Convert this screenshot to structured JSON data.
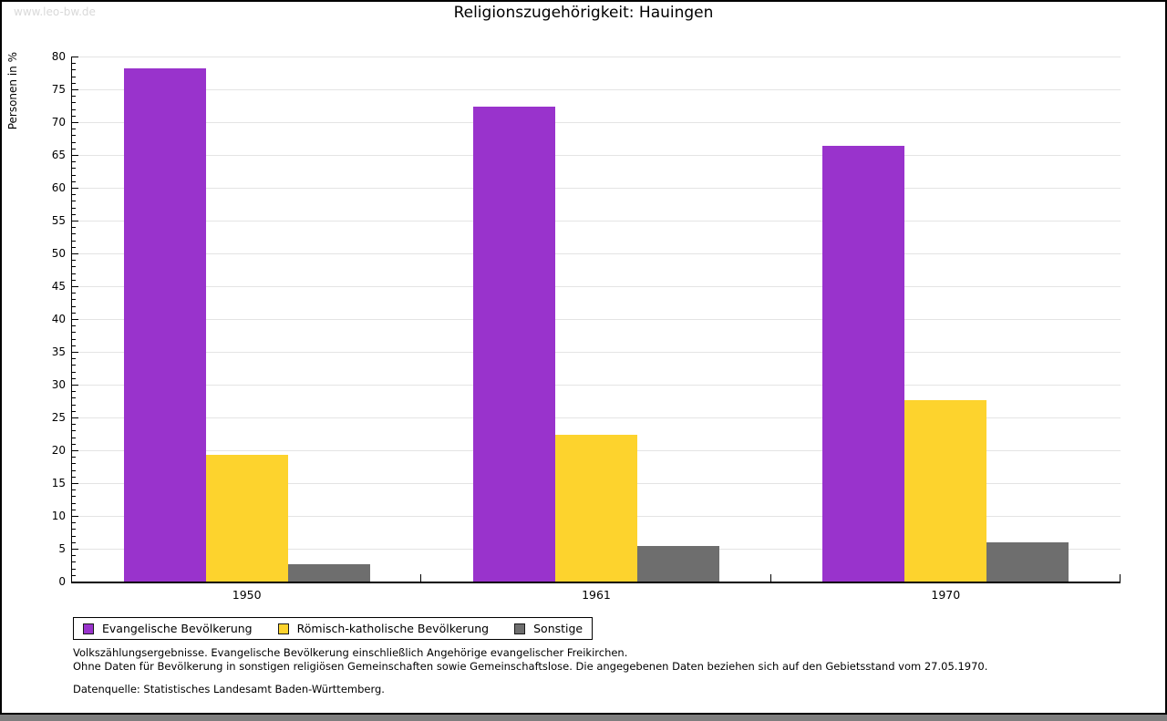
{
  "page": {
    "watermark": "www.leo-bw.de",
    "title": "Religionszugehörigkeit: Hauingen"
  },
  "chart_data": {
    "type": "bar",
    "title": "Religionszugehörigkeit: Hauingen",
    "xlabel": "",
    "ylabel": "Personen in %",
    "ylim": [
      0,
      80
    ],
    "y_major_step": 5,
    "y_minor_step": 1,
    "grid": true,
    "legend_position": "bottom-left",
    "categories": [
      "1950",
      "1961",
      "1970"
    ],
    "series": [
      {
        "name": "Evangelische Bevölkerung",
        "color": "#9933cc",
        "values": [
          78.2,
          72.3,
          66.4
        ]
      },
      {
        "name": "Römisch-katholische Bevölkerung",
        "color": "#fdd32d",
        "values": [
          19.3,
          22.3,
          27.6
        ]
      },
      {
        "name": "Sonstige",
        "color": "#6e6e6e",
        "values": [
          2.6,
          5.4,
          6.0
        ]
      }
    ]
  },
  "footer": {
    "line1": "Volkszählungsergebnisse. Evangelische Bevölkerung einschließlich Angehörige evangelischer Freikirchen.",
    "line2": "Ohne Daten für Bevölkerung in sonstigen religiösen Gemeinschaften sowie Gemeinschaftslose. Die angegebenen Daten beziehen sich auf den Gebietsstand vom 27.05.1970.",
    "line3": "Datenquelle: Statistisches Landesamt Baden-Württemberg."
  },
  "colors": {
    "evangelisch": "#9933cc",
    "katholisch": "#fdd32d",
    "sonstige": "#6e6e6e",
    "gridline": "#e4e4e4",
    "watermark": "#d9d9d9",
    "bottom_strip": "#7e7e7e"
  }
}
